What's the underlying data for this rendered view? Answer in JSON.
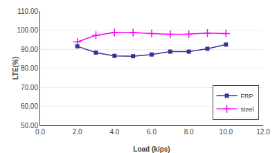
{
  "chart_data": {
    "type": "line",
    "x": [
      2.0,
      3.0,
      4.0,
      5.0,
      6.0,
      7.0,
      8.0,
      9.0,
      10.0
    ],
    "series": [
      {
        "name": "FRP",
        "color": "#333399",
        "marker": "square",
        "values": [
          91.5,
          88.2,
          86.5,
          86.3,
          87.2,
          88.7,
          88.7,
          90.2,
          92.42
        ]
      },
      {
        "name": "steel",
        "color": "#ff00ff",
        "marker": "plus",
        "values": [
          93.8,
          97.3,
          98.7,
          98.7,
          98.2,
          97.8,
          97.9,
          98.5,
          98.21
        ]
      }
    ],
    "xlabel": "Load (kips)",
    "ylabel": "LTE(%)",
    "xlim": [
      0.0,
      12.0
    ],
    "ylim": [
      50.0,
      110.0
    ],
    "xticks": [
      {
        "value": 0,
        "label": "0.0"
      },
      {
        "value": 2,
        "label": "2.0"
      },
      {
        "value": 4,
        "label": "4.0"
      },
      {
        "value": 6,
        "label": "6.0"
      },
      {
        "value": 8,
        "label": "8.0"
      },
      {
        "value": 10,
        "label": "10.0"
      },
      {
        "value": 12,
        "label": "12.0"
      }
    ],
    "yticks": [
      {
        "value": 50,
        "label": "50.00"
      },
      {
        "value": 60,
        "label": "60.00"
      },
      {
        "value": 70,
        "label": "70.00"
      },
      {
        "value": 80,
        "label": "80.00"
      },
      {
        "value": 90,
        "label": "90.00"
      },
      {
        "value": 100,
        "label": "100.00"
      },
      {
        "value": 110,
        "label": "110.00"
      }
    ],
    "grid": "y",
    "legend": "lower right"
  }
}
